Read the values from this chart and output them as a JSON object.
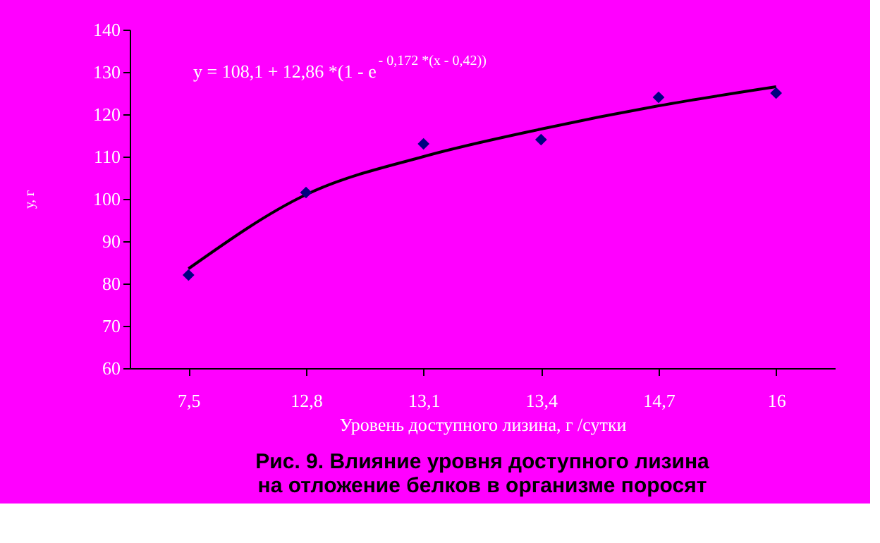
{
  "chart_data": {
    "type": "scatter",
    "title": "Рис. 9. Влияние уровня доступного лизина на отложение белков в организме поросят",
    "xlabel": "Уровень доступного лизина, г /сутки",
    "ylabel": "у, г",
    "categories": [
      "7,5",
      "12,8",
      "13,1",
      "13,4",
      "14,7",
      "16"
    ],
    "series": [
      {
        "color": "#000080",
        "marker": "diamond",
        "values": [
          82,
          101.5,
          113,
          114,
          124,
          125
        ]
      },
      {
        "type": "line",
        "color": "#000000",
        "marker": "none",
        "values": [
          83.5,
          101,
          110,
          116.5,
          122,
          126.5
        ]
      }
    ],
    "annotations": [
      "y = 108,1 + 12,86 *(1 - e$^{- 0,172 *(x - 0,42))}$"
    ],
    "ylim": [
      60,
      140
    ],
    "yticks": [
      60,
      70,
      80,
      90,
      100,
      110,
      120,
      130,
      140
    ],
    "grid": false
  }
}
